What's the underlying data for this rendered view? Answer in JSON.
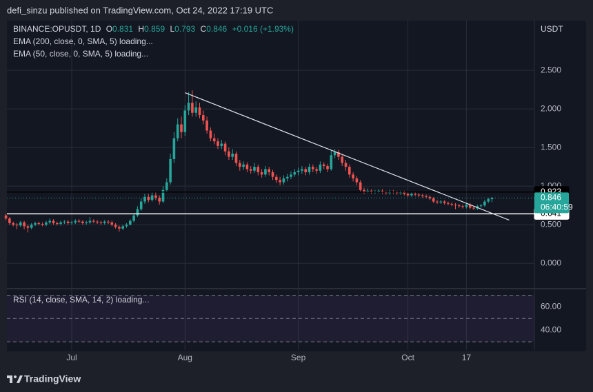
{
  "header": {
    "publisher": "defi_sinzu published on TradingView.com, Oct 24, 2022 17:19 UTC",
    "symbol": "BINANCE:OPUSDT, 1D",
    "ohlc_labels": [
      "O",
      "H",
      "L",
      "C"
    ],
    "change": "+0.016 (+1.93%)",
    "indicators": [
      "EMA (200, close, 0, SMA, 5) loading...",
      "EMA (50, close, 0, SMA, 5) loading..."
    ]
  },
  "chart_data": {
    "type": "candlestick",
    "categories": [
      null,
      null,
      null,
      null,
      null,
      null,
      null,
      null,
      null,
      null,
      null,
      null,
      null,
      null,
      null,
      null,
      null,
      null,
      "Jul",
      null,
      null,
      null,
      null,
      null,
      null,
      null,
      null,
      null,
      null,
      null,
      null,
      null,
      null,
      null,
      null,
      null,
      null,
      null,
      null,
      null,
      null,
      null,
      null,
      null,
      null,
      null,
      null,
      null,
      null,
      "Aug",
      null,
      null,
      null,
      null,
      null,
      null,
      null,
      null,
      null,
      null,
      null,
      null,
      null,
      null,
      null,
      null,
      null,
      null,
      null,
      null,
      null,
      null,
      null,
      null,
      null,
      null,
      null,
      null,
      null,
      null,
      "Sep",
      null,
      null,
      null,
      null,
      null,
      null,
      null,
      null,
      null,
      null,
      null,
      null,
      null,
      null,
      null,
      null,
      null,
      null,
      null,
      null,
      null,
      null,
      null,
      null,
      null,
      null,
      null,
      null,
      null,
      "Oct",
      null,
      null,
      null,
      null,
      null,
      null,
      null,
      null,
      null,
      null,
      null,
      null,
      null,
      null,
      null,
      "17",
      null,
      null,
      null,
      null,
      null,
      null,
      null
    ],
    "open": [
      0.62,
      0.58,
      0.52,
      0.5,
      0.49,
      0.53,
      0.48,
      0.46,
      0.5,
      0.52,
      0.51,
      0.5,
      0.53,
      0.55,
      0.52,
      0.51,
      0.53,
      0.54,
      0.52,
      0.53,
      0.55,
      0.54,
      0.52,
      0.53,
      0.55,
      0.54,
      0.53,
      0.52,
      0.54,
      0.53,
      0.5,
      0.47,
      0.45,
      0.48,
      0.5,
      0.55,
      0.62,
      0.7,
      0.8,
      0.86,
      0.82,
      0.88,
      0.85,
      0.8,
      0.95,
      1.05,
      1.35,
      1.62,
      1.8,
      1.7,
      1.98,
      2.08,
      1.95,
      2.02,
      1.92,
      1.85,
      1.72,
      1.62,
      1.58,
      1.52,
      1.55,
      1.45,
      1.38,
      1.42,
      1.3,
      1.25,
      1.28,
      1.22,
      1.2,
      1.25,
      1.18,
      1.15,
      1.22,
      1.18,
      1.12,
      1.08,
      1.05,
      1.1,
      1.12,
      1.15,
      1.18,
      1.2,
      1.22,
      1.18,
      1.25,
      1.22,
      1.2,
      1.28,
      1.26,
      1.22,
      1.4,
      1.44,
      1.38,
      1.3,
      1.25,
      1.15,
      1.1,
      1.05,
      0.95,
      0.93,
      0.94,
      0.92,
      0.93,
      0.94,
      0.92,
      0.91,
      0.93,
      0.92,
      0.91,
      0.92,
      0.9,
      0.88,
      0.9,
      0.89,
      0.88,
      0.87,
      0.86,
      0.84,
      0.8,
      0.79,
      0.8,
      0.78,
      0.77,
      0.76,
      0.75,
      0.74,
      0.73,
      0.76,
      0.72,
      0.71,
      0.74,
      0.75,
      0.8,
      0.831
    ],
    "high": [
      0.64,
      0.6,
      0.54,
      0.52,
      0.55,
      0.55,
      0.5,
      0.52,
      0.54,
      0.54,
      0.53,
      0.55,
      0.58,
      0.57,
      0.54,
      0.55,
      0.56,
      0.56,
      0.55,
      0.57,
      0.57,
      0.56,
      0.55,
      0.6,
      0.57,
      0.56,
      0.55,
      0.56,
      0.56,
      0.55,
      0.52,
      0.49,
      0.5,
      0.52,
      0.57,
      0.65,
      0.74,
      0.84,
      0.9,
      0.9,
      0.92,
      0.92,
      0.88,
      1.0,
      1.1,
      1.42,
      1.7,
      1.88,
      1.9,
      2.05,
      2.22,
      2.24,
      2.1,
      2.08,
      1.98,
      1.9,
      1.76,
      1.68,
      1.62,
      1.6,
      1.58,
      1.5,
      1.48,
      1.45,
      1.34,
      1.32,
      1.31,
      1.26,
      1.3,
      1.28,
      1.22,
      1.26,
      1.25,
      1.21,
      1.15,
      1.12,
      1.14,
      1.16,
      1.19,
      1.22,
      1.24,
      1.26,
      1.25,
      1.29,
      1.28,
      1.25,
      1.32,
      1.31,
      1.29,
      1.46,
      1.48,
      1.47,
      1.41,
      1.34,
      1.28,
      1.18,
      1.13,
      1.08,
      0.98,
      0.97,
      0.96,
      0.95,
      0.96,
      0.96,
      0.94,
      0.95,
      0.95,
      0.94,
      0.94,
      0.94,
      0.92,
      0.92,
      0.92,
      0.91,
      0.9,
      0.89,
      0.88,
      0.86,
      0.82,
      0.82,
      0.82,
      0.8,
      0.79,
      0.78,
      0.77,
      0.76,
      0.78,
      0.78,
      0.74,
      0.76,
      0.77,
      0.82,
      0.85,
      0.859
    ],
    "low": [
      0.56,
      0.5,
      0.48,
      0.44,
      0.47,
      0.44,
      0.4,
      0.44,
      0.48,
      0.49,
      0.48,
      0.48,
      0.51,
      0.5,
      0.49,
      0.49,
      0.51,
      0.5,
      0.5,
      0.51,
      0.52,
      0.5,
      0.5,
      0.51,
      0.52,
      0.51,
      0.5,
      0.5,
      0.51,
      0.48,
      0.45,
      0.41,
      0.43,
      0.46,
      0.49,
      0.53,
      0.6,
      0.68,
      0.77,
      0.79,
      0.8,
      0.82,
      0.76,
      0.78,
      0.92,
      1.02,
      1.3,
      1.58,
      1.62,
      1.65,
      1.92,
      1.9,
      1.9,
      1.88,
      1.8,
      1.68,
      1.58,
      1.54,
      1.48,
      1.48,
      1.4,
      1.34,
      1.34,
      1.26,
      1.2,
      1.21,
      1.18,
      1.16,
      1.17,
      1.14,
      1.11,
      1.12,
      1.14,
      1.08,
      1.04,
      1.01,
      1.02,
      1.06,
      1.09,
      1.12,
      1.14,
      1.16,
      1.14,
      1.15,
      1.18,
      1.16,
      1.17,
      1.22,
      1.18,
      1.2,
      1.36,
      1.34,
      1.26,
      1.2,
      1.11,
      1.06,
      1.01,
      0.92,
      0.9,
      0.91,
      0.9,
      0.9,
      0.91,
      0.9,
      0.89,
      0.89,
      0.9,
      0.89,
      0.89,
      0.88,
      0.86,
      0.86,
      0.87,
      0.86,
      0.85,
      0.84,
      0.82,
      0.78,
      0.77,
      0.77,
      0.76,
      0.75,
      0.74,
      0.7,
      0.72,
      0.71,
      0.71,
      0.7,
      0.69,
      0.69,
      0.72,
      0.73,
      0.78,
      0.793
    ],
    "close": [
      0.58,
      0.52,
      0.5,
      0.49,
      0.53,
      0.48,
      0.46,
      0.5,
      0.52,
      0.51,
      0.5,
      0.53,
      0.55,
      0.52,
      0.51,
      0.53,
      0.54,
      0.52,
      0.53,
      0.55,
      0.54,
      0.52,
      0.53,
      0.55,
      0.54,
      0.53,
      0.52,
      0.54,
      0.53,
      0.5,
      0.47,
      0.45,
      0.48,
      0.5,
      0.55,
      0.62,
      0.7,
      0.8,
      0.86,
      0.82,
      0.88,
      0.85,
      0.8,
      0.95,
      1.05,
      1.35,
      1.62,
      1.8,
      1.7,
      1.98,
      2.08,
      1.95,
      2.02,
      1.92,
      1.85,
      1.72,
      1.62,
      1.58,
      1.52,
      1.55,
      1.45,
      1.38,
      1.42,
      1.3,
      1.25,
      1.28,
      1.22,
      1.2,
      1.25,
      1.18,
      1.15,
      1.22,
      1.18,
      1.12,
      1.08,
      1.05,
      1.1,
      1.12,
      1.15,
      1.18,
      1.2,
      1.22,
      1.18,
      1.25,
      1.22,
      1.2,
      1.28,
      1.26,
      1.22,
      1.4,
      1.44,
      1.38,
      1.3,
      1.25,
      1.15,
      1.1,
      1.05,
      0.95,
      0.93,
      0.94,
      0.92,
      0.93,
      0.94,
      0.92,
      0.91,
      0.93,
      0.92,
      0.91,
      0.92,
      0.9,
      0.88,
      0.9,
      0.89,
      0.88,
      0.87,
      0.86,
      0.84,
      0.8,
      0.79,
      0.8,
      0.78,
      0.77,
      0.76,
      0.75,
      0.74,
      0.73,
      0.76,
      0.72,
      0.71,
      0.74,
      0.75,
      0.8,
      0.831,
      0.846
    ],
    "up_color": "#26a69a",
    "down_color": "#ef5350",
    "ylim": [
      -0.32,
      3.144
    ],
    "yticks": [
      {
        "value": 0,
        "label": "0.000"
      },
      {
        "value": 0.5,
        "label": "0.500"
      },
      {
        "value": 1,
        "label": "1.000"
      },
      {
        "value": 1.5,
        "label": "1.500"
      },
      {
        "value": 2,
        "label": "2.000"
      },
      {
        "value": 2.5,
        "label": "2.500"
      }
    ],
    "unit": "USDT",
    "grid": true,
    "levels": [
      {
        "value": 0.923,
        "color": "#000000"
      },
      {
        "value": 0.641,
        "color": "#ffffff"
      }
    ],
    "countdown": "06:40:59",
    "trendline": {
      "x": [
        49,
        137.7
      ],
      "y": [
        2.21,
        0.56
      ],
      "color": "#e0e3eb"
    }
  },
  "rsi": {
    "title": "RSI (14, close, SMA, 14, 2) loading...",
    "ylim": [
      23,
      75
    ],
    "yticks": [
      {
        "value": 40,
        "label": "40.00"
      },
      {
        "value": 60,
        "label": "60.00"
      }
    ],
    "bands": [
      30,
      50,
      70
    ]
  },
  "footer": {
    "brand": "TradingView"
  }
}
